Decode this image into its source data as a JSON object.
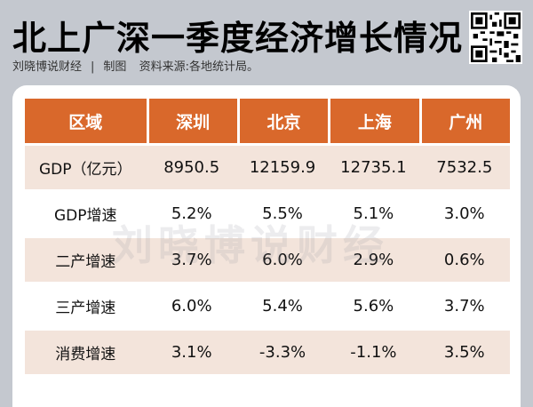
{
  "header": {
    "title": "北上广深一季度经济增长情况",
    "author": "刘晓博说财经",
    "separator": "|",
    "role": "制图",
    "source": "资料来源:各地统计局。"
  },
  "watermark": "刘晓博说财经",
  "table": {
    "headers": [
      "区域",
      "深圳",
      "北京",
      "上海",
      "广州"
    ],
    "rows": [
      {
        "label": "GDP（亿元）",
        "values": [
          "8950.5",
          "12159.9",
          "12735.1",
          "7532.5"
        ]
      },
      {
        "label": "GDP增速",
        "values": [
          "5.2%",
          "5.5%",
          "5.1%",
          "3.0%"
        ]
      },
      {
        "label": "二产增速",
        "values": [
          "3.7%",
          "6.0%",
          "2.9%",
          "0.6%"
        ]
      },
      {
        "label": "三产增速",
        "values": [
          "6.0%",
          "5.4%",
          "5.6%",
          "3.7%"
        ]
      },
      {
        "label": "消费增速",
        "values": [
          "3.1%",
          "-3.3%",
          "-1.1%",
          "3.5%"
        ]
      }
    ]
  },
  "colors": {
    "header_bg": "#d9682b",
    "shade_row": "#f3e4db",
    "page_bg": "#c4c8cf"
  }
}
